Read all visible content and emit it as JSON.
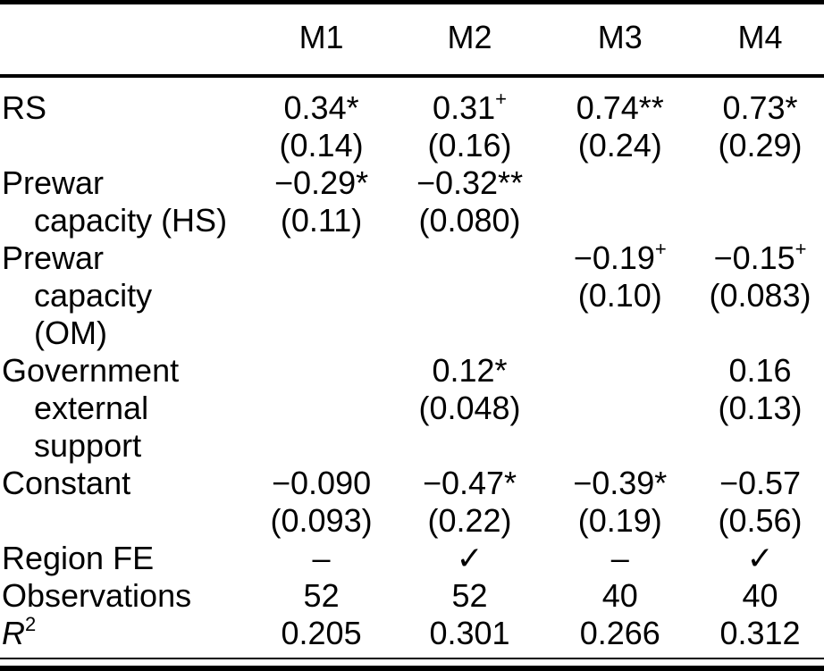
{
  "colors": {
    "text": "#000000",
    "background": "#ffffff",
    "rule": "#000000"
  },
  "header": {
    "col0": "",
    "m1": "M1",
    "m2": "M2",
    "m3": "M3",
    "m4": "M4"
  },
  "lines": [
    {
      "l": "RS",
      "c1": "0.34*",
      "c2": "0.31",
      "s2": "+",
      "c3": "0.74**",
      "c4": "0.73*"
    },
    {
      "c1": "(0.14)",
      "c2": "(0.16)",
      "c3": "(0.24)",
      "c4": "(0.29)"
    },
    {
      "l": "Prewar",
      "c1": "−0.29*",
      "c2": "−0.32**"
    },
    {
      "l": "capacity (HS)",
      "c1": "(0.11)",
      "c2": "(0.080)"
    },
    {
      "l": "Prewar",
      "c3": "−0.19",
      "s3": "+",
      "c4": "−0.15",
      "s4": "+"
    },
    {
      "l": "capacity",
      "c3": "(0.10)",
      "c4": "(0.083)"
    },
    {
      "l": "(OM)"
    },
    {
      "l": "Government",
      "c2": "0.12*",
      "c4": "0.16"
    },
    {
      "l": "external",
      "c2": "(0.048)",
      "c4": "(0.13)"
    },
    {
      "l": "support"
    },
    {
      "l": "Constant",
      "c1": "−0.090",
      "c2": "−0.47*",
      "c3": "−0.39*",
      "c4": "−0.57"
    },
    {
      "c1": "(0.093)",
      "c2": "(0.22)",
      "c3": "(0.19)",
      "c4": "(0.56)"
    },
    {
      "l": "Region FE",
      "c1": "–",
      "c2": "✓",
      "c3": "–",
      "c4": "✓"
    },
    {
      "l": "Observations",
      "c1": "52",
      "c2": "52",
      "c3": "40",
      "c4": "40"
    },
    {
      "rl_base": "R",
      "rl_sup": "2",
      "c1": "0.205",
      "c2": "0.301",
      "c3": "0.266",
      "c4": "0.312"
    }
  ]
}
